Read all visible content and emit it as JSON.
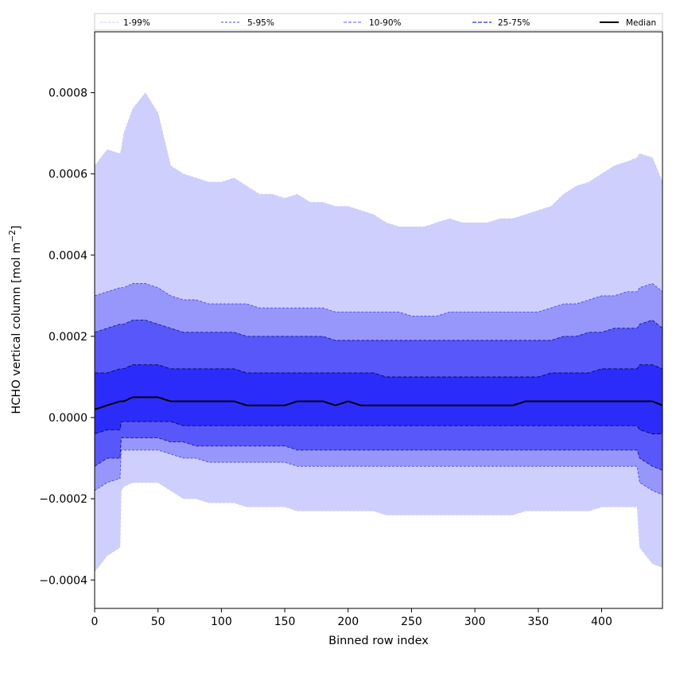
{
  "chart_data": {
    "type": "area",
    "title": "",
    "xlabel": "Binned row index",
    "ylabel_main": "HCHO vertical column [mol m",
    "ylabel_sup": "−2",
    "ylabel_end": "]",
    "xlim": [
      0,
      448
    ],
    "ylim": [
      -0.00047,
      0.00095
    ],
    "x_ticks": [
      0,
      50,
      100,
      150,
      200,
      250,
      300,
      350,
      400
    ],
    "y_ticks": [
      -0.0004,
      -0.0002,
      0.0,
      0.0002,
      0.0004,
      0.0006,
      0.0008
    ],
    "y_tick_labels": [
      "−0.0004",
      "−0.0002",
      "0.0000",
      "0.0002",
      "0.0004",
      "0.0006",
      "0.0008"
    ],
    "legend_placement": "top, horizontal above plot",
    "x": [
      0,
      10,
      20,
      21,
      23,
      30,
      40,
      50,
      60,
      70,
      80,
      90,
      100,
      110,
      120,
      130,
      140,
      150,
      160,
      170,
      180,
      190,
      200,
      210,
      220,
      230,
      240,
      250,
      260,
      270,
      280,
      290,
      300,
      310,
      320,
      330,
      340,
      350,
      360,
      370,
      380,
      390,
      400,
      410,
      420,
      428,
      430,
      440,
      448
    ],
    "series": [
      {
        "name": "1-99%",
        "lower": [
          -0.00038,
          -0.00034,
          -0.00032,
          -0.00018,
          -0.00017,
          -0.00016,
          -0.00016,
          -0.00016,
          -0.00018,
          -0.0002,
          -0.0002,
          -0.00021,
          -0.00021,
          -0.00021,
          -0.00022,
          -0.00022,
          -0.00022,
          -0.00022,
          -0.00023,
          -0.00023,
          -0.00023,
          -0.00023,
          -0.00023,
          -0.00023,
          -0.00023,
          -0.00024,
          -0.00024,
          -0.00024,
          -0.00024,
          -0.00024,
          -0.00024,
          -0.00024,
          -0.00024,
          -0.00024,
          -0.00024,
          -0.00024,
          -0.00023,
          -0.00023,
          -0.00023,
          -0.00023,
          -0.00023,
          -0.00023,
          -0.00022,
          -0.00022,
          -0.00022,
          -0.00022,
          -0.00032,
          -0.00036,
          -0.00037
        ],
        "upper": [
          0.00062,
          0.00066,
          0.00065,
          0.00066,
          0.0007,
          0.00076,
          0.0008,
          0.00075,
          0.00062,
          0.0006,
          0.00059,
          0.00058,
          0.00058,
          0.00059,
          0.00057,
          0.00055,
          0.00055,
          0.00054,
          0.00055,
          0.00053,
          0.00053,
          0.00052,
          0.00052,
          0.00051,
          0.0005,
          0.00048,
          0.00047,
          0.00047,
          0.00047,
          0.00048,
          0.00049,
          0.00048,
          0.00048,
          0.00048,
          0.00049,
          0.00049,
          0.0005,
          0.00051,
          0.00052,
          0.00055,
          0.00057,
          0.00058,
          0.0006,
          0.00062,
          0.00063,
          0.00064,
          0.00065,
          0.00064,
          0.00058
        ]
      },
      {
        "name": "5-95%",
        "lower": [
          -0.00018,
          -0.00016,
          -0.00015,
          -8e-05,
          -8e-05,
          -8e-05,
          -8e-05,
          -8e-05,
          -9e-05,
          -0.0001,
          -0.0001,
          -0.00011,
          -0.00011,
          -0.00011,
          -0.00011,
          -0.00011,
          -0.00011,
          -0.00011,
          -0.00012,
          -0.00012,
          -0.00012,
          -0.00012,
          -0.00012,
          -0.00012,
          -0.00012,
          -0.00012,
          -0.00012,
          -0.00012,
          -0.00012,
          -0.00012,
          -0.00012,
          -0.00012,
          -0.00012,
          -0.00012,
          -0.00012,
          -0.00012,
          -0.00012,
          -0.00012,
          -0.00012,
          -0.00012,
          -0.00012,
          -0.00012,
          -0.00012,
          -0.00012,
          -0.00012,
          -0.00012,
          -0.00016,
          -0.00018,
          -0.00019
        ],
        "upper": [
          0.0003,
          0.00031,
          0.00032,
          0.00032,
          0.00032,
          0.00033,
          0.00033,
          0.00032,
          0.0003,
          0.00029,
          0.00029,
          0.00028,
          0.00028,
          0.00028,
          0.00028,
          0.00027,
          0.00027,
          0.00027,
          0.00027,
          0.00027,
          0.00027,
          0.00026,
          0.00026,
          0.00026,
          0.00026,
          0.00026,
          0.00026,
          0.00025,
          0.00025,
          0.00025,
          0.00026,
          0.00026,
          0.00026,
          0.00026,
          0.00026,
          0.00026,
          0.00026,
          0.00026,
          0.00027,
          0.00028,
          0.00028,
          0.00029,
          0.0003,
          0.0003,
          0.00031,
          0.00031,
          0.00032,
          0.00033,
          0.00031
        ]
      },
      {
        "name": "10-90%",
        "lower": [
          -0.00012,
          -0.0001,
          -0.0001,
          -5e-05,
          -5e-05,
          -5e-05,
          -5e-05,
          -5e-05,
          -6e-05,
          -6e-05,
          -7e-05,
          -7e-05,
          -7e-05,
          -7e-05,
          -7e-05,
          -7e-05,
          -7e-05,
          -7e-05,
          -8e-05,
          -8e-05,
          -8e-05,
          -8e-05,
          -8e-05,
          -8e-05,
          -8e-05,
          -8e-05,
          -8e-05,
          -8e-05,
          -8e-05,
          -8e-05,
          -8e-05,
          -8e-05,
          -8e-05,
          -8e-05,
          -8e-05,
          -8e-05,
          -8e-05,
          -8e-05,
          -8e-05,
          -8e-05,
          -8e-05,
          -8e-05,
          -8e-05,
          -8e-05,
          -8e-05,
          -8e-05,
          -0.0001,
          -0.00012,
          -0.00013
        ],
        "upper": [
          0.00021,
          0.00022,
          0.00023,
          0.00023,
          0.00023,
          0.00024,
          0.00024,
          0.00023,
          0.00022,
          0.00021,
          0.00021,
          0.00021,
          0.00021,
          0.00021,
          0.0002,
          0.0002,
          0.0002,
          0.0002,
          0.0002,
          0.0002,
          0.0002,
          0.00019,
          0.00019,
          0.00019,
          0.00019,
          0.00019,
          0.00019,
          0.00019,
          0.00019,
          0.00019,
          0.00019,
          0.00019,
          0.00019,
          0.00019,
          0.00019,
          0.00019,
          0.00019,
          0.00019,
          0.00019,
          0.0002,
          0.0002,
          0.00021,
          0.00021,
          0.00022,
          0.00022,
          0.00022,
          0.00023,
          0.00024,
          0.00022
        ]
      },
      {
        "name": "25-75%",
        "lower": [
          -4e-05,
          -3e-05,
          -3e-05,
          -1e-05,
          -1e-05,
          -1e-05,
          -1e-05,
          -1e-05,
          -1e-05,
          -2e-05,
          -2e-05,
          -2e-05,
          -2e-05,
          -2e-05,
          -2e-05,
          -2e-05,
          -2e-05,
          -2e-05,
          -2e-05,
          -2e-05,
          -2e-05,
          -2e-05,
          -2e-05,
          -2e-05,
          -2e-05,
          -2e-05,
          -2e-05,
          -2e-05,
          -2e-05,
          -2e-05,
          -2e-05,
          -2e-05,
          -2e-05,
          -2e-05,
          -2e-05,
          -2e-05,
          -2e-05,
          -2e-05,
          -2e-05,
          -2e-05,
          -2e-05,
          -2e-05,
          -2e-05,
          -2e-05,
          -2e-05,
          -2e-05,
          -3e-05,
          -4e-05,
          -4e-05
        ],
        "upper": [
          0.00011,
          0.00011,
          0.00012,
          0.00012,
          0.00012,
          0.00013,
          0.00013,
          0.00013,
          0.00012,
          0.00012,
          0.00012,
          0.00012,
          0.00012,
          0.00012,
          0.00011,
          0.00011,
          0.00011,
          0.00011,
          0.00011,
          0.00011,
          0.00011,
          0.00011,
          0.00011,
          0.00011,
          0.00011,
          0.0001,
          0.0001,
          0.0001,
          0.0001,
          0.0001,
          0.0001,
          0.0001,
          0.0001,
          0.0001,
          0.0001,
          0.0001,
          0.0001,
          0.0001,
          0.00011,
          0.00011,
          0.00011,
          0.00011,
          0.00012,
          0.00012,
          0.00012,
          0.00012,
          0.00013,
          0.00013,
          0.00012
        ]
      },
      {
        "name": "Median",
        "values": [
          2e-05,
          3e-05,
          4e-05,
          4e-05,
          4e-05,
          5e-05,
          5e-05,
          5e-05,
          4e-05,
          4e-05,
          4e-05,
          4e-05,
          4e-05,
          4e-05,
          3e-05,
          3e-05,
          3e-05,
          3e-05,
          4e-05,
          4e-05,
          4e-05,
          3e-05,
          4e-05,
          3e-05,
          3e-05,
          3e-05,
          3e-05,
          3e-05,
          3e-05,
          3e-05,
          3e-05,
          3e-05,
          3e-05,
          3e-05,
          3e-05,
          3e-05,
          4e-05,
          4e-05,
          4e-05,
          4e-05,
          4e-05,
          4e-05,
          4e-05,
          4e-05,
          4e-05,
          4e-05,
          4e-05,
          4e-05,
          3e-05
        ]
      }
    ],
    "colors": {
      "band_1_99": "#cfcffd",
      "band_5_95": "#9797fb",
      "band_10_90": "#5757fa",
      "band_25_75": "#2c2cfa",
      "line_1_99": "#c8c8f6",
      "line_5_95": "#4a4ae8",
      "line_10_90": "#1a1a9a",
      "line_25_75": "#06066a",
      "median": "#000000"
    }
  }
}
